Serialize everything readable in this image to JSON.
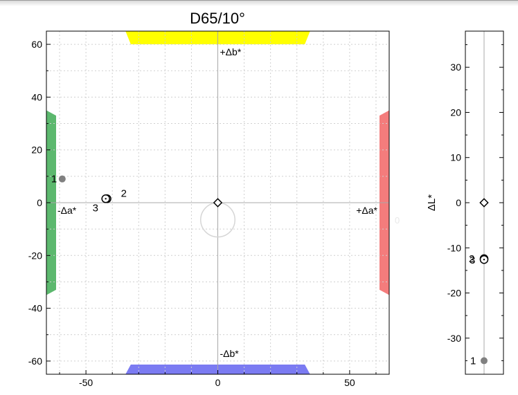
{
  "chart_data": [
    {
      "type": "scatter",
      "title": "D65/10°",
      "xlabel": "",
      "ylabel": "",
      "xlim": [
        -65,
        65
      ],
      "ylim": [
        -65,
        65
      ],
      "xticks": [
        -50,
        0,
        50
      ],
      "yticks": [
        -60,
        -40,
        -20,
        0,
        20,
        40,
        60
      ],
      "grid": true,
      "axis_labels": {
        "pos_a": "+Δa*",
        "neg_a": "-Δa*",
        "pos_b": "+Δb*",
        "neg_b": "-Δb*"
      },
      "colors": {
        "pos_a": "#f47c7c",
        "neg_a": "#5cb86e",
        "pos_b": "#ffff00",
        "neg_b": "#7b7bf2"
      },
      "reference": {
        "x": 0,
        "y": 0
      },
      "tolerance_circle_radius": 6.5,
      "stray_label": "0",
      "points": [
        {
          "label": "1",
          "x": -59,
          "y": 9,
          "marker": "filled"
        },
        {
          "label": "2",
          "x": -42,
          "y": 1.5,
          "marker": "ring"
        },
        {
          "label": "3",
          "x": -42.5,
          "y": 1.5,
          "marker": "ring"
        }
      ]
    },
    {
      "type": "scatter",
      "title": "",
      "ylabel": "ΔL*",
      "ylim": [
        -38,
        38
      ],
      "yticks": [
        -30,
        -20,
        -10,
        0,
        10,
        20,
        30
      ],
      "reference": {
        "y": 0
      },
      "points": [
        {
          "label": "1",
          "y": -35,
          "marker": "filled"
        },
        {
          "label": "2",
          "y": -12.4,
          "marker": "ring"
        },
        {
          "label": "3",
          "y": -12.6,
          "marker": "ring"
        }
      ]
    }
  ]
}
